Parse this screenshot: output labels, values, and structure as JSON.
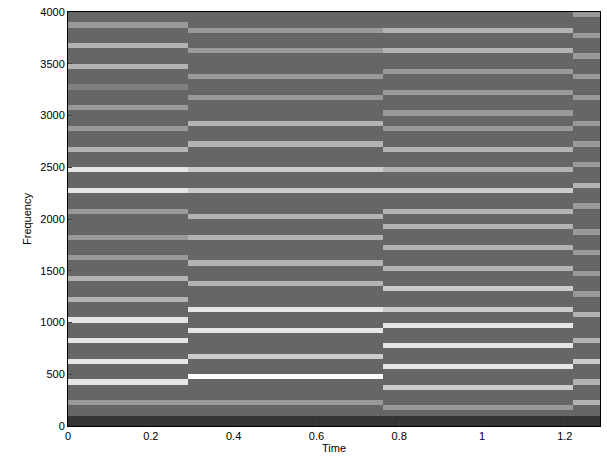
{
  "chart_data": {
    "type": "heatmap",
    "xlabel": "Time",
    "ylabel": "Frequency",
    "x": [
      0,
      0.29,
      0.76,
      1.22,
      1.285
    ],
    "y": [
      0,
      50,
      100,
      150,
      200,
      250,
      300,
      350,
      400,
      450,
      500,
      550,
      600,
      650,
      700,
      750,
      800,
      850,
      900,
      950,
      1000,
      1050,
      1100,
      1150,
      1200,
      1250,
      1300,
      1350,
      1400,
      1450,
      1500,
      1550,
      1600,
      1650,
      1700,
      1750,
      1800,
      1850,
      1900,
      1950,
      2000,
      2050,
      2100,
      2150,
      2200,
      2250,
      2300,
      2350,
      2400,
      2450,
      2500,
      2550,
      2600,
      2650,
      2700,
      2750,
      2800,
      2850,
      2900,
      2950,
      3000,
      3050,
      3100,
      3150,
      3200,
      3250,
      3300,
      3350,
      3400,
      3450,
      3500,
      3550,
      3600,
      3650,
      3700,
      3750,
      3800,
      3850,
      3900,
      3950,
      4000
    ],
    "z": [
      [
        2,
        2,
        2,
        2
      ],
      [
        2,
        2,
        2,
        2
      ],
      [
        4,
        4,
        4,
        4
      ],
      [
        4,
        4,
        6,
        4
      ],
      [
        6,
        6,
        4,
        7
      ],
      [
        4,
        4,
        4,
        4
      ],
      [
        4,
        4,
        4,
        4
      ],
      [
        4,
        4,
        8,
        4
      ],
      [
        9,
        4,
        4,
        7
      ],
      [
        4,
        10,
        4,
        4
      ],
      [
        4,
        4,
        4,
        4
      ],
      [
        4,
        4,
        9,
        4
      ],
      [
        9,
        4,
        4,
        8
      ],
      [
        4,
        8,
        4,
        4
      ],
      [
        4,
        4,
        4,
        4
      ],
      [
        4,
        4,
        9,
        4
      ],
      [
        9,
        4,
        4,
        7
      ],
      [
        4,
        4,
        4,
        4
      ],
      [
        4,
        9,
        4,
        4
      ],
      [
        4,
        4,
        9,
        4
      ],
      [
        9,
        4,
        4,
        4
      ],
      [
        4,
        4,
        4,
        7
      ],
      [
        4,
        9,
        8,
        4
      ],
      [
        4,
        4,
        4,
        4
      ],
      [
        7,
        4,
        4,
        4
      ],
      [
        4,
        4,
        4,
        6
      ],
      [
        4,
        4,
        8,
        4
      ],
      [
        4,
        7,
        4,
        4
      ],
      [
        7,
        4,
        4,
        4
      ],
      [
        4,
        4,
        4,
        6
      ],
      [
        4,
        4,
        7,
        4
      ],
      [
        4,
        7,
        4,
        4
      ],
      [
        6,
        4,
        4,
        4
      ],
      [
        4,
        4,
        4,
        6
      ],
      [
        4,
        4,
        7,
        4
      ],
      [
        4,
        4,
        4,
        4
      ],
      [
        6,
        7,
        4,
        4
      ],
      [
        4,
        4,
        4,
        6
      ],
      [
        4,
        4,
        7,
        4
      ],
      [
        4,
        4,
        4,
        4
      ],
      [
        4,
        7,
        4,
        4
      ],
      [
        6,
        4,
        7,
        4
      ],
      [
        4,
        4,
        4,
        6
      ],
      [
        4,
        4,
        4,
        4
      ],
      [
        4,
        4,
        4,
        4
      ],
      [
        9,
        8,
        8,
        4
      ],
      [
        4,
        4,
        4,
        7
      ],
      [
        4,
        4,
        4,
        4
      ],
      [
        4,
        4,
        4,
        4
      ],
      [
        9,
        8,
        7,
        4
      ],
      [
        4,
        4,
        4,
        6
      ],
      [
        4,
        4,
        4,
        4
      ],
      [
        4,
        4,
        4,
        4
      ],
      [
        7,
        4,
        7,
        4
      ],
      [
        4,
        7,
        4,
        6
      ],
      [
        4,
        4,
        4,
        4
      ],
      [
        4,
        4,
        4,
        4
      ],
      [
        6,
        4,
        6,
        4
      ],
      [
        4,
        7,
        4,
        6
      ],
      [
        4,
        4,
        4,
        4
      ],
      [
        4,
        4,
        6,
        4
      ],
      [
        6,
        4,
        4,
        4
      ],
      [
        4,
        4,
        4,
        4
      ],
      [
        4,
        6,
        4,
        6
      ],
      [
        4,
        4,
        6,
        4
      ],
      [
        5,
        4,
        4,
        4
      ],
      [
        4,
        4,
        4,
        4
      ],
      [
        4,
        6,
        4,
        6
      ],
      [
        4,
        4,
        6,
        4
      ],
      [
        7,
        4,
        4,
        4
      ],
      [
        4,
        4,
        4,
        4
      ],
      [
        4,
        4,
        4,
        6
      ],
      [
        4,
        6,
        7,
        4
      ],
      [
        7,
        4,
        4,
        4
      ],
      [
        4,
        4,
        4,
        4
      ],
      [
        4,
        4,
        4,
        6
      ],
      [
        4,
        6,
        7,
        4
      ],
      [
        6,
        4,
        4,
        4
      ],
      [
        4,
        4,
        4,
        4
      ],
      [
        4,
        4,
        4,
        6
      ]
    ],
    "zlim": [
      0,
      10
    ],
    "xlim": [
      0,
      1.285
    ],
    "ylim": [
      0,
      4000
    ],
    "xticks": [
      0,
      0.2,
      0.4,
      0.6,
      0.8,
      1,
      1.2
    ],
    "yticks": [
      0,
      500,
      1000,
      1500,
      2000,
      2500,
      3000,
      3500,
      4000
    ],
    "grid": false
  }
}
